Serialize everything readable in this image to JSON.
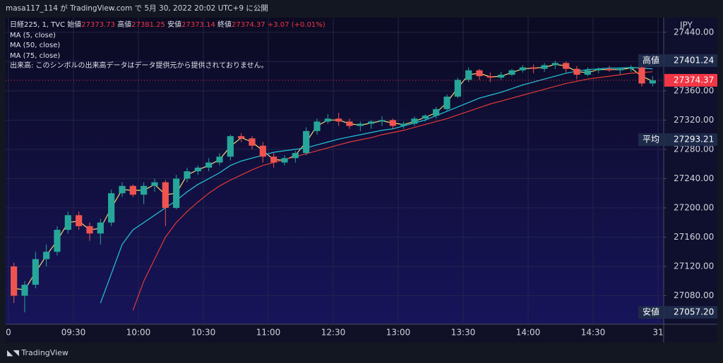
{
  "header": "masa117_114 が TradingView.com で 5月 30, 2022 20:02 UTC+9 に公開",
  "footer": "TradingView",
  "chart_data": {
    "type": "candlestick",
    "symbol": "日経225, 1, TVC",
    "ohlc_legend": [
      {
        "name": "始値",
        "value": 27373.73
      },
      {
        "name": "高値",
        "value": 27381.25
      },
      {
        "name": "安値",
        "value": 27373.14
      },
      {
        "name": "終値",
        "value": 27374.37
      }
    ],
    "change": "+3.07 (+0.01%)",
    "volume_note": "出来高: このシンボルの出来高データはデータ提供元から提供されておりません。",
    "currency": "JPY",
    "x": [
      "09:00",
      "09:05",
      "09:10",
      "09:15",
      "09:20",
      "09:25",
      "09:30",
      "09:35",
      "09:40",
      "09:45",
      "09:50",
      "09:55",
      "10:00",
      "10:05",
      "10:10",
      "10:15",
      "10:20",
      "10:25",
      "10:30",
      "10:35",
      "10:40",
      "10:45",
      "10:50",
      "10:55",
      "11:00",
      "11:05",
      "11:10",
      "11:15",
      "11:20",
      "11:25",
      "12:30",
      "12:35",
      "12:40",
      "12:45",
      "12:50",
      "12:55",
      "13:00",
      "13:05",
      "13:10",
      "13:15",
      "13:20",
      "13:25",
      "13:30",
      "13:35",
      "13:40",
      "13:45",
      "13:50",
      "13:55",
      "14:00",
      "14:05",
      "14:10",
      "14:15",
      "14:20",
      "14:25",
      "14:30",
      "14:35",
      "14:40",
      "14:45",
      "14:50",
      "14:55"
    ],
    "open": [
      27120,
      27080,
      27095,
      27130,
      27140,
      27170,
      27190,
      27175,
      27165,
      27180,
      27220,
      27230,
      27218,
      27230,
      27235,
      27200,
      27240,
      27250,
      27255,
      27262,
      27270,
      27298,
      27295,
      27285,
      27270,
      27262,
      27268,
      27275,
      27305,
      27318,
      27322,
      27318,
      27312,
      27315,
      27318,
      27320,
      27312,
      27315,
      27322,
      27326,
      27335,
      27352,
      27375,
      27388,
      27380,
      27378,
      27382,
      27388,
      27392,
      27390,
      27395,
      27398,
      27390,
      27382,
      27388,
      27390,
      27388,
      27390,
      27392,
      27370
    ],
    "high": [
      27125,
      27100,
      27140,
      27150,
      27175,
      27195,
      27195,
      27180,
      27185,
      27225,
      27235,
      27232,
      27235,
      27240,
      27238,
      27245,
      27255,
      27258,
      27268,
      27275,
      27300,
      27302,
      27298,
      27290,
      27275,
      27272,
      27278,
      27310,
      27322,
      27328,
      27330,
      27322,
      27318,
      27320,
      27325,
      27322,
      27318,
      27325,
      27328,
      27338,
      27355,
      27378,
      27392,
      27390,
      27385,
      27386,
      27390,
      27395,
      27396,
      27398,
      27401.24,
      27400,
      27394,
      27392,
      27392,
      27394,
      27392,
      27395,
      27395,
      27380
    ],
    "low": [
      27070,
      27057.2,
      27090,
      27120,
      27135,
      27165,
      27170,
      27155,
      27150,
      27175,
      27215,
      27215,
      27205,
      27222,
      27175,
      27198,
      27235,
      27245,
      27250,
      27258,
      27265,
      27290,
      27280,
      27262,
      27255,
      27258,
      27262,
      27272,
      27300,
      27315,
      27312,
      27308,
      27305,
      27308,
      27312,
      27308,
      27308,
      27312,
      27318,
      27322,
      27332,
      27350,
      27372,
      27375,
      27372,
      27375,
      27380,
      27385,
      27384,
      27386,
      27390,
      27385,
      27376,
      27380,
      27384,
      27386,
      27382,
      27386,
      27366,
      27366
    ],
    "close": [
      27080,
      27095,
      27130,
      27140,
      27170,
      27190,
      27175,
      27165,
      27180,
      27220,
      27230,
      27218,
      27230,
      27235,
      27200,
      27240,
      27250,
      27255,
      27262,
      27270,
      27298,
      27295,
      27285,
      27270,
      27262,
      27268,
      27275,
      27305,
      27318,
      27322,
      27318,
      27312,
      27315,
      27318,
      27320,
      27312,
      27315,
      27322,
      27326,
      27335,
      27352,
      27375,
      27388,
      27380,
      27378,
      27382,
      27388,
      27392,
      27390,
      27395,
      27398,
      27390,
      27382,
      27388,
      27390,
      27388,
      27390,
      27392,
      27370,
      27374.37
    ],
    "up_color": "#26a69a",
    "down_color": "#ef5350",
    "series": [
      {
        "name": "MA (5, close)",
        "color": "#f5d76e",
        "values": [
          27090,
          27088,
          27112,
          27135,
          27155,
          27180,
          27182,
          27170,
          27172,
          27200,
          27225,
          27224,
          27224,
          27232,
          27218,
          27220,
          27245,
          27252,
          27258,
          27266,
          27284,
          27296,
          27290,
          27278,
          27266,
          27265,
          27272,
          27290,
          27312,
          27320,
          27320,
          27315,
          27313,
          27316,
          27319,
          27316,
          27314,
          27318,
          27324,
          27330,
          27344,
          27364,
          27382,
          27384,
          27379,
          27380,
          27385,
          27390,
          27391,
          27392,
          27396,
          27394,
          27386,
          27385,
          27389,
          27389,
          27389,
          27391,
          27380,
          27373
        ]
      },
      {
        "name": "MA (50, close)",
        "color": "#26c6da",
        "values": [
          null,
          null,
          null,
          null,
          null,
          null,
          null,
          null,
          27070,
          27110,
          27150,
          27170,
          27180,
          27190,
          27200,
          27210,
          27222,
          27232,
          27240,
          27248,
          27258,
          27264,
          27268,
          27272,
          27276,
          27278,
          27280,
          27282,
          27286,
          27290,
          27294,
          27297,
          27300,
          27303,
          27306,
          27308,
          27312,
          27316,
          27320,
          27326,
          27332,
          27338,
          27344,
          27350,
          27354,
          27358,
          27363,
          27368,
          27372,
          27376,
          27380,
          27384,
          27387,
          27389,
          27390,
          27391,
          27391,
          27392,
          27391,
          27390
        ]
      },
      {
        "name": "MA (75, close)",
        "color": "#e53935",
        "values": [
          null,
          null,
          null,
          null,
          null,
          null,
          null,
          null,
          null,
          null,
          null,
          27060,
          27100,
          27130,
          27160,
          27180,
          27195,
          27208,
          27220,
          27230,
          27238,
          27245,
          27252,
          27258,
          27262,
          27266,
          27270,
          27274,
          27278,
          27282,
          27286,
          27290,
          27293,
          27296,
          27300,
          27303,
          27306,
          27310,
          27314,
          27318,
          27322,
          27327,
          27332,
          27337,
          27342,
          27346,
          27350,
          27354,
          27358,
          27362,
          27366,
          27370,
          27373,
          27376,
          27378,
          27380,
          27382,
          27384,
          27385,
          27386
        ]
      }
    ],
    "ylim": [
      27041,
      27460
    ],
    "yticks": [
      {
        "value": 27080,
        "label": "27080.00"
      },
      {
        "value": 27120,
        "label": "27120.00"
      },
      {
        "value": 27160,
        "label": "27160.00"
      },
      {
        "value": 27200,
        "label": "27200.00"
      },
      {
        "value": 27240,
        "label": "27240.00"
      },
      {
        "value": 27280,
        "label": "27280.00"
      },
      {
        "value": 27320,
        "label": "27320.00"
      },
      {
        "value": 27360,
        "label": "27360.00"
      },
      {
        "value": 27400,
        "label": "27400.00"
      },
      {
        "value": 27440,
        "label": "27440.00"
      }
    ],
    "xticks": [
      0,
      {
        "value": 6,
        "label": "09:30"
      },
      {
        "value": 12,
        "label": "10:00"
      },
      {
        "value": 18,
        "label": "10:30"
      },
      {
        "value": 24,
        "label": "11:00"
      },
      {
        "value": 30,
        "label": "12:30"
      },
      {
        "value": 36,
        "label": "13:00"
      },
      {
        "value": 42,
        "label": "13:30"
      },
      {
        "value": 48,
        "label": "14:00"
      },
      {
        "value": 54,
        "label": "14:30"
      },
      {
        "value": 60,
        "label": "31"
      }
    ],
    "price_markers": [
      {
        "name": "高値",
        "value": 27401.24
      },
      {
        "name": "平均",
        "value": 27293.21
      },
      {
        "name": "安値",
        "value": 27057.2,
        "value_label": "27057.20"
      }
    ],
    "last_price": {
      "value": 27374.37,
      "color": "#f23645"
    },
    "grid": true
  }
}
